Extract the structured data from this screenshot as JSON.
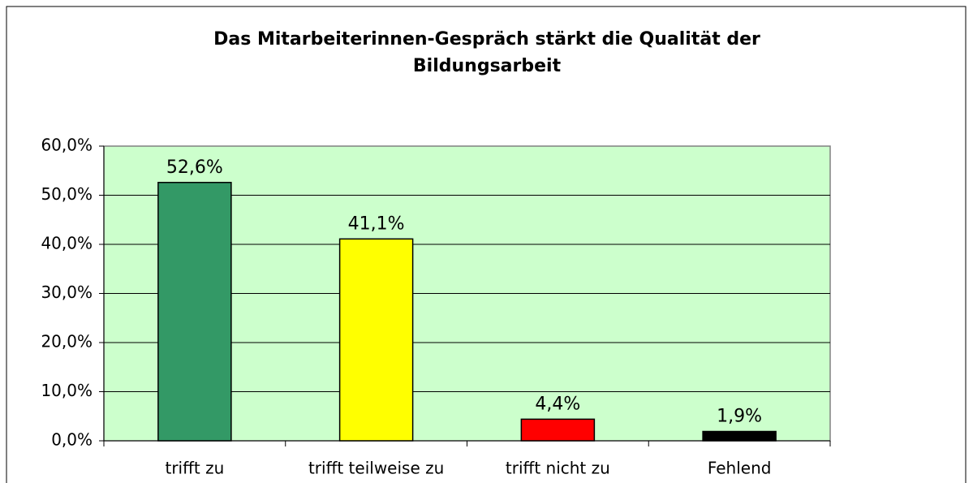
{
  "chart_data": {
    "type": "bar",
    "title": "Das Mitarbeiterinnen-Gespräch stärkt die Qualität der Bildungsarbeit",
    "categories": [
      "trifft zu",
      "trifft teilweise zu",
      "trifft nicht zu",
      "Fehlend"
    ],
    "values": [
      52.6,
      41.1,
      4.4,
      1.9
    ],
    "value_labels": [
      "52,6%",
      "41,1%",
      "4,4%",
      "1,9%"
    ],
    "colors": [
      "#339966",
      "#ffff00",
      "#ff0000",
      "#000000"
    ],
    "ylim": [
      0,
      60
    ],
    "yticks": [
      {
        "value": 0,
        "label": "0,0%"
      },
      {
        "value": 10,
        "label": "10,0%"
      },
      {
        "value": 20,
        "label": "20,0%"
      },
      {
        "value": 30,
        "label": "30,0%"
      },
      {
        "value": 40,
        "label": "40,0%"
      },
      {
        "value": 50,
        "label": "50,0%"
      },
      {
        "value": 60,
        "label": "60,0%"
      }
    ],
    "grid": true
  }
}
